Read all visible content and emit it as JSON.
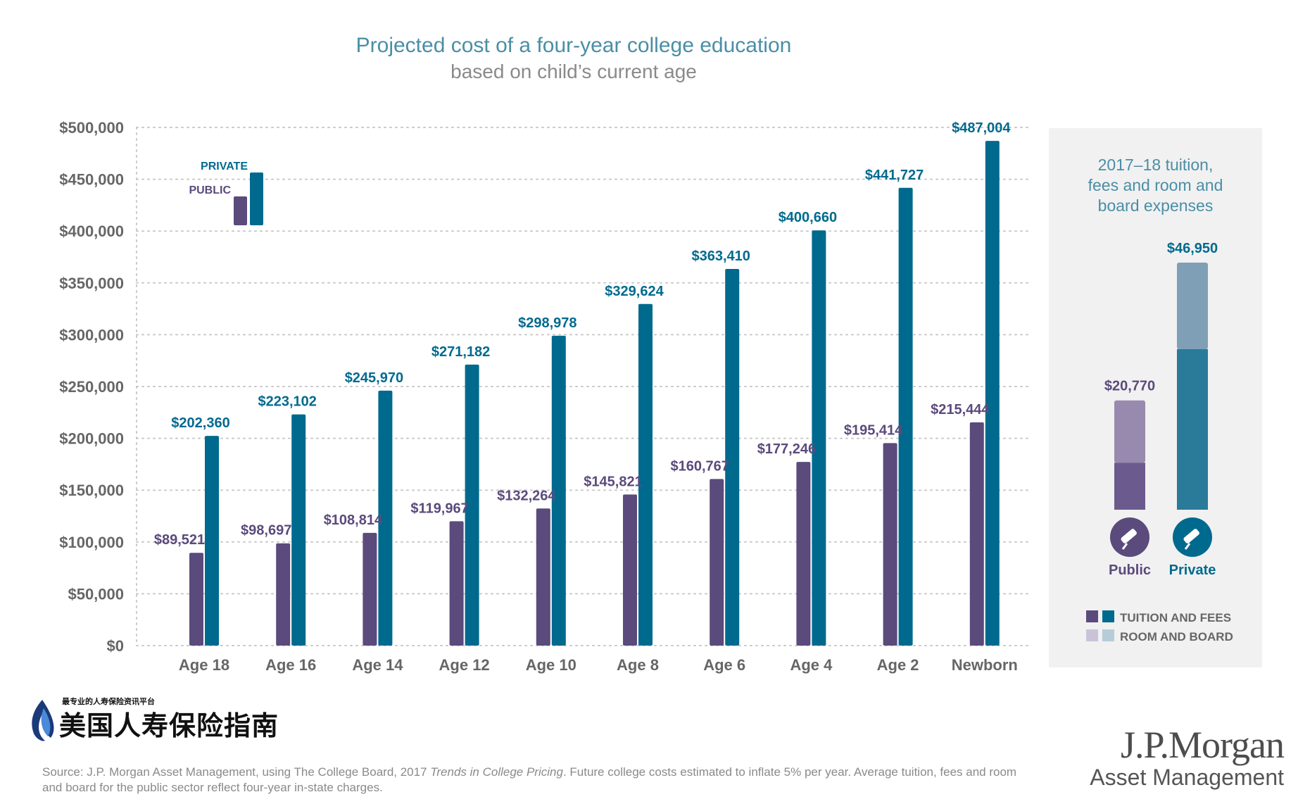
{
  "chart_data": {
    "type": "bar",
    "title": "Projected cost of a four-year college education",
    "subtitle": "based on child’s current age",
    "categories": [
      "Age 18",
      "Age 16",
      "Age 14",
      "Age 12",
      "Age 10",
      "Age 8",
      "Age 6",
      "Age 4",
      "Age 2",
      "Newborn"
    ],
    "series": [
      {
        "name": "PUBLIC",
        "color": "#5b4a7c",
        "values": [
          89521,
          98697,
          108814,
          119967,
          132264,
          145821,
          160767,
          177246,
          195414,
          215444
        ],
        "labels": [
          "$89,521",
          "$98,697",
          "$108,814",
          "$119,967",
          "$132,264",
          "$145,821",
          "$160,767",
          "$177,246",
          "$195,414",
          "$215,444"
        ]
      },
      {
        "name": "PRIVATE",
        "color": "#006a8e",
        "values": [
          202360,
          223102,
          245970,
          271182,
          298978,
          329624,
          363410,
          400660,
          441727,
          487004
        ],
        "labels": [
          "$202,360",
          "$223,102",
          "$245,970",
          "$271,182",
          "$298,978",
          "$329,624",
          "$363,410",
          "$400,660",
          "$441,727",
          "$487,004"
        ]
      }
    ],
    "ylim": [
      0,
      500000
    ],
    "yticks": [
      0,
      50000,
      100000,
      150000,
      200000,
      250000,
      300000,
      350000,
      400000,
      450000,
      500000
    ],
    "ytick_labels": [
      "$0",
      "$50,000",
      "$100,000",
      "$150,000",
      "$200,000",
      "$250,000",
      "$300,000",
      "$350,000",
      "$400,000",
      "$450,000",
      "$500,000"
    ],
    "grid": "horizontal dotted",
    "legend": {
      "placement": "top-left",
      "entries": [
        "PRIVATE",
        "PUBLIC"
      ]
    },
    "inset": {
      "title_lines": [
        "2017–18 tuition,",
        "fees and room and",
        "board expenses"
      ],
      "type": "stacked bar",
      "categories": [
        "Public",
        "Private"
      ],
      "totals": [
        20770,
        46950
      ],
      "total_labels": [
        "$20,770",
        "$46,950"
      ],
      "components": [
        "TUITION AND FEES",
        "ROOM AND BOARD"
      ],
      "tuition_share": [
        0.43,
        0.65
      ],
      "colors": {
        "public_tuition": "#6b5a8e",
        "public_room": "#988aae",
        "private_tuition": "#2a7a9a",
        "private_room": "#7f9fb6",
        "legend_public_light": "#cac3d8",
        "legend_private_light": "#b6ccd8"
      }
    }
  },
  "logo_cn": {
    "tagline": "最专业的人寿保险资讯平台",
    "name": "美国人寿保险指南"
  },
  "source": {
    "prefix": "Source: J.P. Morgan Asset Management, using The College Board, 2017 ",
    "italic": "Trends in College Pricing",
    "suffix": ". Future college costs estimated to inflate 5% per year. Average tuition, fees and room and board for the public sector reflect four-year in-state charges."
  },
  "brand": {
    "name": "J.P.Morgan",
    "sub": "Asset Management"
  },
  "colors": {
    "axis_text": "#666666",
    "grid": "#c8c8c8",
    "title": "#4a8ea6",
    "panel_bg": "#f1f1f1"
  }
}
